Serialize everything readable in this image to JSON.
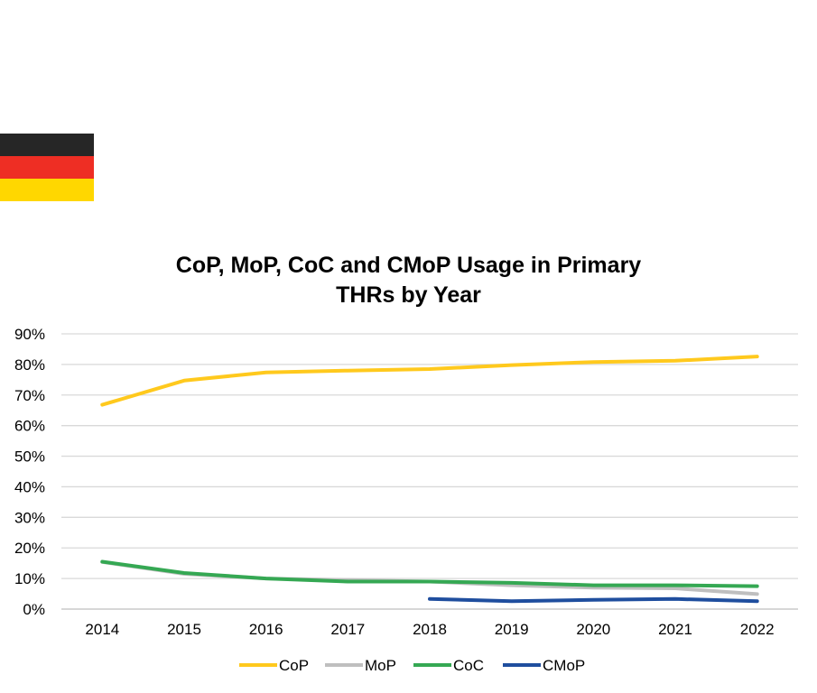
{
  "colors": {
    "flag": [
      "#262626",
      "#EE2E24",
      "#FFD700"
    ],
    "gridline": "#D9D9D9",
    "axis": "#BFBFBF"
  },
  "chart_data": {
    "type": "line",
    "title": [
      "CoP, MoP, CoC and CMoP Usage in Primary",
      "THRs by Year"
    ],
    "xlabel": "",
    "ylabel": "",
    "categories": [
      "2014",
      "2015",
      "2016",
      "2017",
      "2018",
      "2019",
      "2020",
      "2021",
      "2022"
    ],
    "ylim": [
      0,
      90
    ],
    "yticks": [
      0,
      10,
      20,
      30,
      40,
      50,
      60,
      70,
      80,
      90
    ],
    "ytick_labels": [
      "0%",
      "10%",
      "20%",
      "30%",
      "40%",
      "50%",
      "60%",
      "70%",
      "80%",
      "90%"
    ],
    "grid": true,
    "legend": "bottom",
    "series": [
      {
        "name": "CoP",
        "color": "#FFC91D",
        "values": [
          66.8,
          74.7,
          77.4,
          78.0,
          78.5,
          79.8,
          80.8,
          81.2,
          82.6
        ]
      },
      {
        "name": "MoP",
        "color": "#BFBFBF",
        "values": [
          15.4,
          11.5,
          10.0,
          9.5,
          9.0,
          7.8,
          7.0,
          6.8,
          4.9
        ]
      },
      {
        "name": "CoC",
        "color": "#35A853",
        "values": [
          15.5,
          11.8,
          10.0,
          9.0,
          9.0,
          8.6,
          7.8,
          7.8,
          7.5
        ]
      },
      {
        "name": "CMoP",
        "color": "#1F4E9E",
        "values": [
          null,
          null,
          null,
          null,
          3.3,
          2.6,
          3.0,
          3.3,
          2.6
        ]
      }
    ]
  }
}
